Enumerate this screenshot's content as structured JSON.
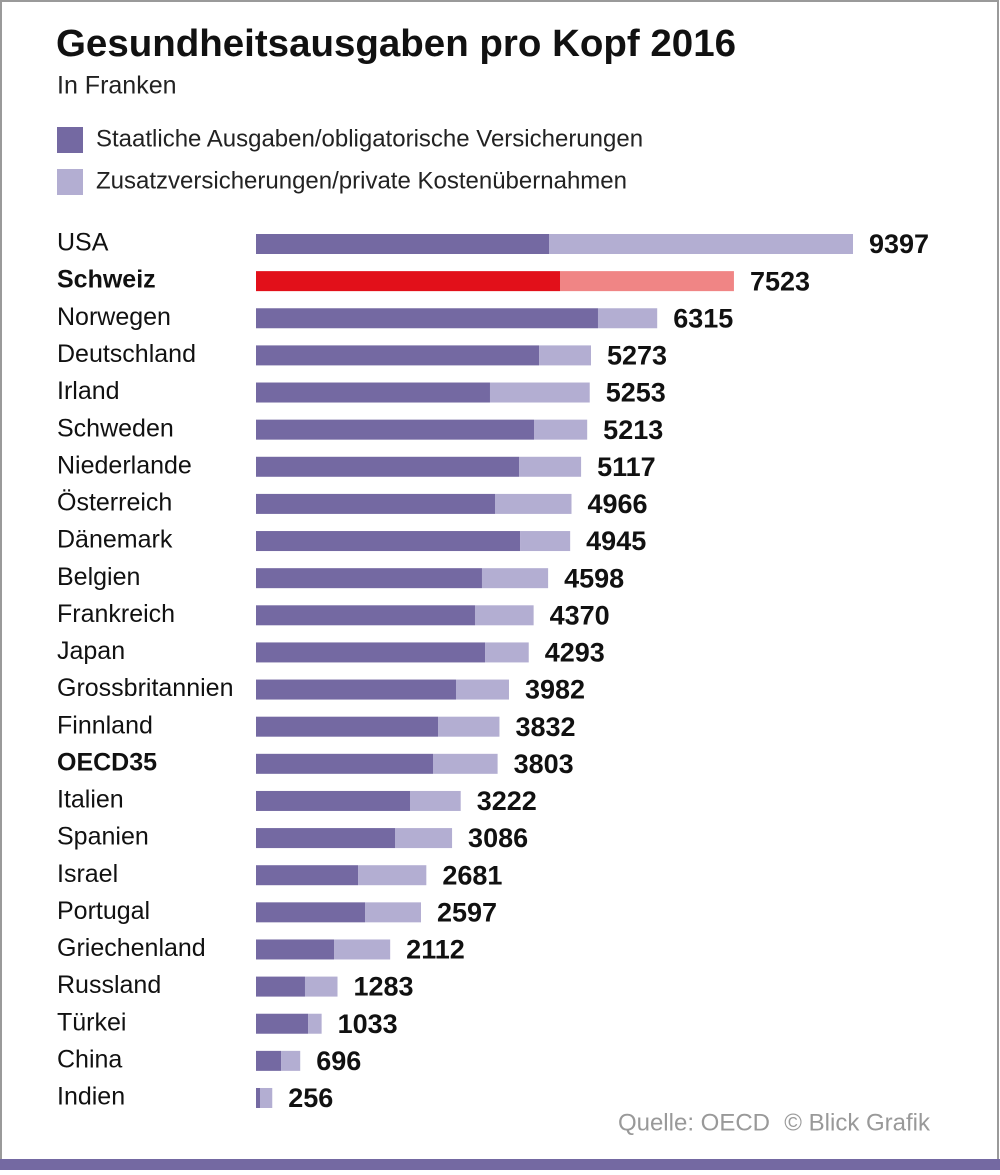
{
  "chart_data": {
    "type": "stacked-bar-horizontal",
    "title": "Gesundheitsausgaben pro Kopf 2016",
    "subtitle": "In Franken",
    "source": "Quelle: OECD",
    "credit": "© Blick Grafik",
    "categories": [
      "USA",
      "Schweiz",
      "Norwegen",
      "Deutschland",
      "Irland",
      "Schweden",
      "Niederlande",
      "Österreich",
      "Dänemark",
      "Belgien",
      "Frankreich",
      "Japan",
      "Grossbritannien",
      "Finnland",
      "OECD35",
      "Italien",
      "Spanien",
      "Israel",
      "Portugal",
      "Griechenland",
      "Russland",
      "Türkei",
      "China",
      "Indien"
    ],
    "series": [
      {
        "name": "Staatliche Ausgaben/obligatorische Versicherungen",
        "color": "#7469a2",
        "highlight_color": "#e2101a",
        "values": [
          4612,
          4785,
          5383,
          4455,
          3683,
          4376,
          4140,
          3762,
          4156,
          3557,
          3447,
          3605,
          3148,
          2865,
          2786,
          2424,
          2188,
          1606,
          1716,
          1228,
          771,
          819,
          394,
          63
        ]
      },
      {
        "name": "Zusatzversicherungen/private Kostenübernahmen",
        "color": "#b3aed2",
        "highlight_color": "#f08585",
        "values": [
          4785,
          2738,
          932,
          818,
          1570,
          837,
          977,
          1204,
          789,
          1041,
          923,
          688,
          834,
          967,
          1017,
          798,
          898,
          1075,
          881,
          884,
          512,
          214,
          302,
          193
        ]
      }
    ],
    "totals": [
      9397,
      7523,
      6315,
      5273,
      5253,
      5213,
      5117,
      4966,
      4945,
      4598,
      4370,
      4293,
      3982,
      3832,
      3803,
      3222,
      3086,
      2681,
      2597,
      2112,
      1283,
      1033,
      696,
      256
    ],
    "highlight": [
      "Schweiz"
    ],
    "bold": [
      "Schweiz",
      "OECD35"
    ],
    "xlim": [
      0,
      9397
    ]
  }
}
